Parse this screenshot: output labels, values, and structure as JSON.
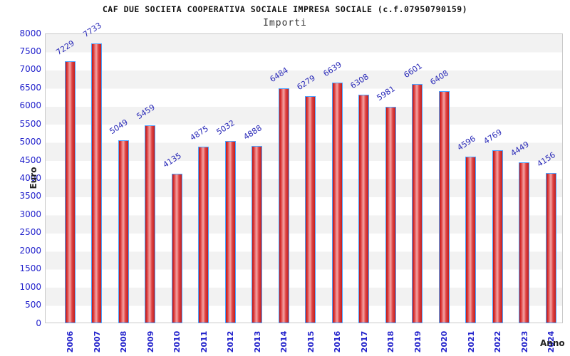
{
  "header": {
    "title": "CAF DUE SOCIETA COOPERATIVA SOCIALE IMPRESA SOCIALE (c.f.07950790159)",
    "subtitle": "Importi"
  },
  "chart_data": {
    "type": "bar",
    "title": "CAF DUE SOCIETA COOPERATIVA SOCIALE IMPRESA SOCIALE (c.f.07950790159)",
    "subtitle": "Importi",
    "xlabel": "Anno",
    "ylabel": "Euro",
    "categories": [
      "2006",
      "2007",
      "2008",
      "2009",
      "2010",
      "2011",
      "2012",
      "2013",
      "2014",
      "2015",
      "2016",
      "2017",
      "2018",
      "2019",
      "2020",
      "2021",
      "2022",
      "2023",
      "2024"
    ],
    "values": [
      7229,
      7733,
      5049,
      5459,
      4135,
      4875,
      5032,
      4888,
      6484,
      6279,
      6639,
      6308,
      5981,
      6601,
      6408,
      4596,
      4769,
      4449,
      4156
    ],
    "ylim": [
      0,
      8000
    ],
    "ytick_step": 500,
    "grid": "horizontal-bands",
    "legend": "none",
    "colors": {
      "bar_fill_edge": "#b81c1c",
      "bar_fill_highlight": "#f2a0a0",
      "bar_border": "#4da3ff",
      "label_text": "#2222cc",
      "band_gray": "#f2f2f2",
      "band_white": "#ffffff",
      "axis_text": "#222222",
      "plot_border": "#c9c9c9"
    }
  }
}
